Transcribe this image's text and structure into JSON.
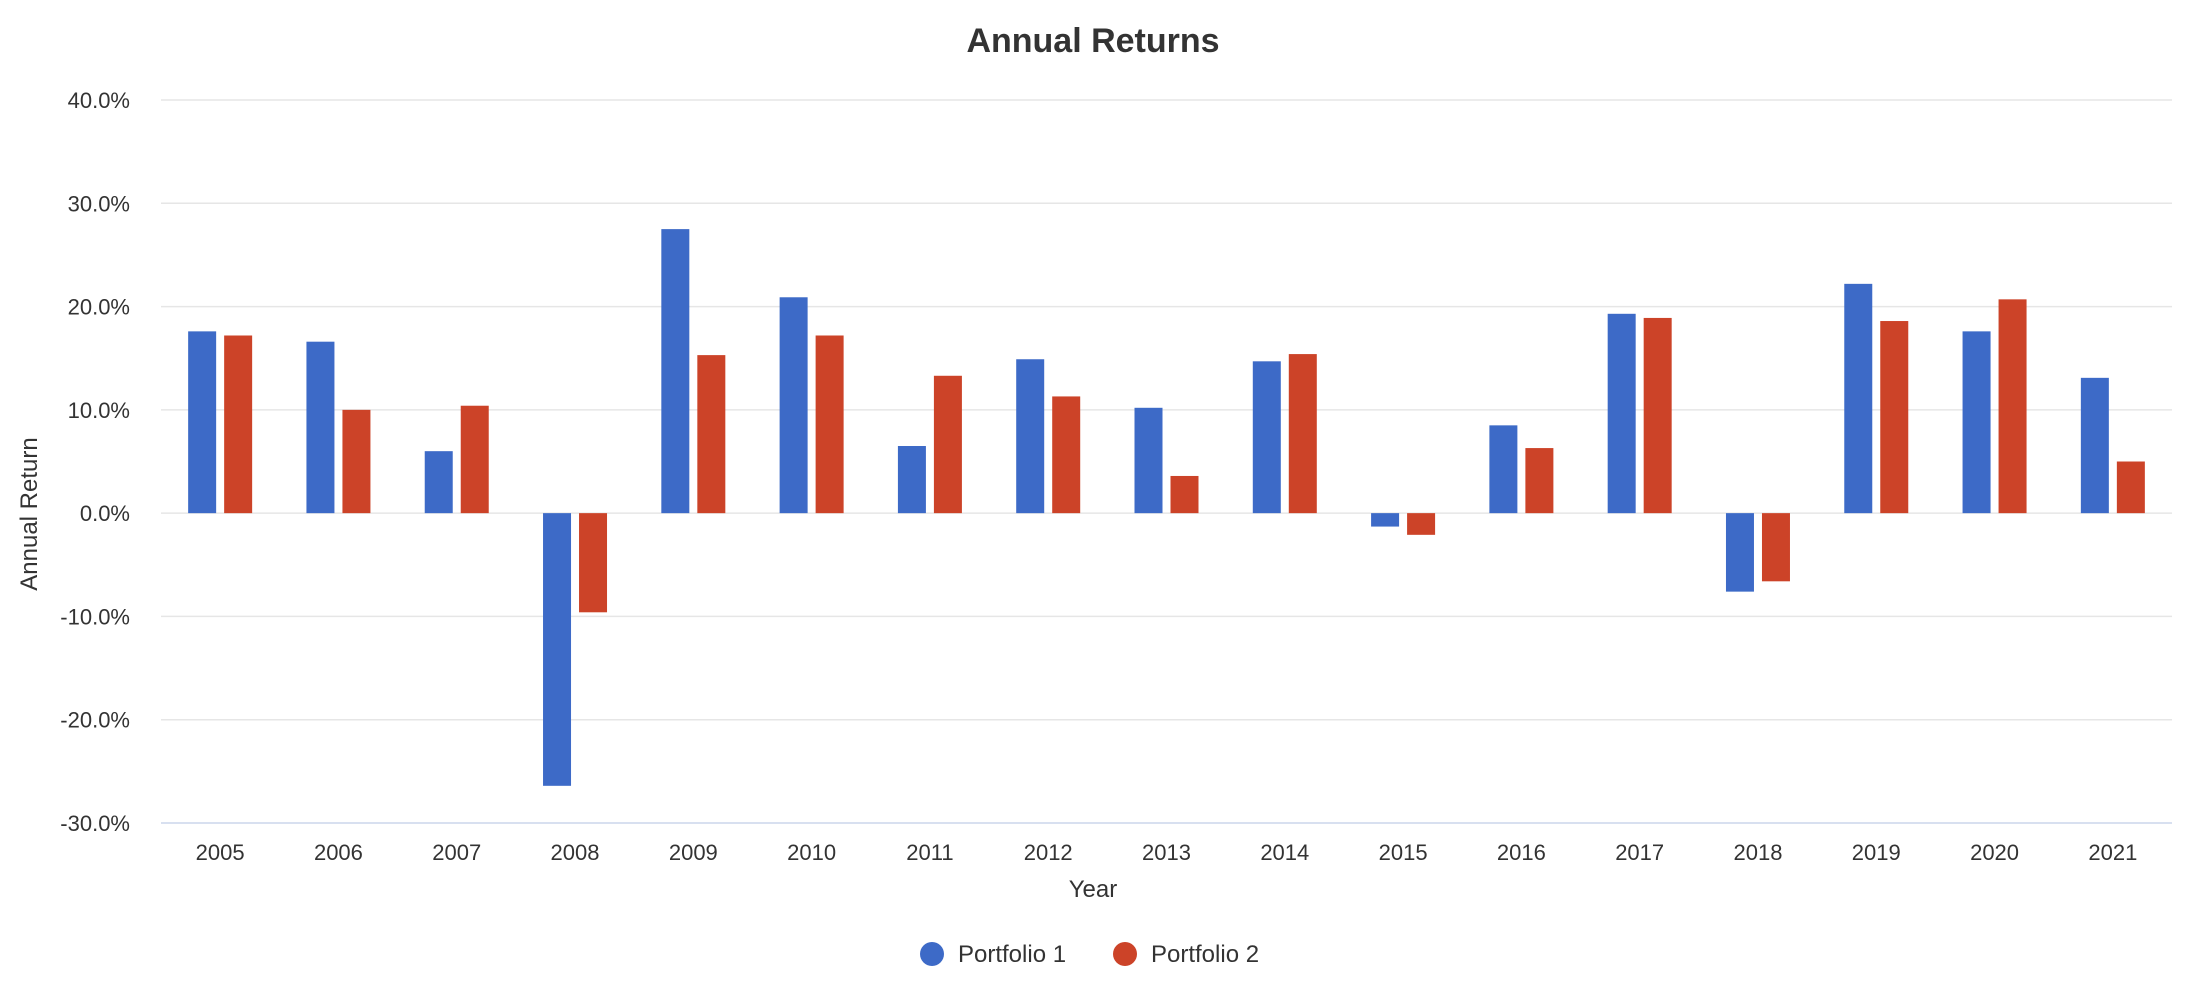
{
  "chart_data": {
    "type": "bar",
    "title": "Annual Returns",
    "xlabel": "Year",
    "ylabel": "Annual Return",
    "categories": [
      "2005",
      "2006",
      "2007",
      "2008",
      "2009",
      "2010",
      "2011",
      "2012",
      "2013",
      "2014",
      "2015",
      "2016",
      "2017",
      "2018",
      "2019",
      "2020",
      "2021"
    ],
    "series": [
      {
        "name": "Portfolio 1",
        "color": "#3d6ac7",
        "values": [
          17.6,
          16.6,
          6.0,
          -26.4,
          27.5,
          20.9,
          6.5,
          14.9,
          10.2,
          14.7,
          -1.3,
          8.5,
          19.3,
          -7.6,
          22.2,
          17.6,
          13.1
        ]
      },
      {
        "name": "Portfolio 2",
        "color": "#cc4328",
        "values": [
          17.2,
          10.0,
          10.4,
          -9.6,
          15.3,
          17.2,
          13.3,
          11.3,
          3.6,
          15.4,
          -2.1,
          6.3,
          18.9,
          -6.6,
          18.6,
          20.7,
          5.0
        ]
      }
    ],
    "ylim": [
      -30,
      40
    ],
    "yticks": [
      "40.0%",
      "30.0%",
      "20.0%",
      "10.0%",
      "0.0%",
      "-10.0%",
      "-20.0%",
      "-30.0%"
    ],
    "ytick_values": [
      40,
      30,
      20,
      10,
      0,
      -10,
      -20,
      -30
    ],
    "grid": true,
    "legend": "bottom-center"
  }
}
